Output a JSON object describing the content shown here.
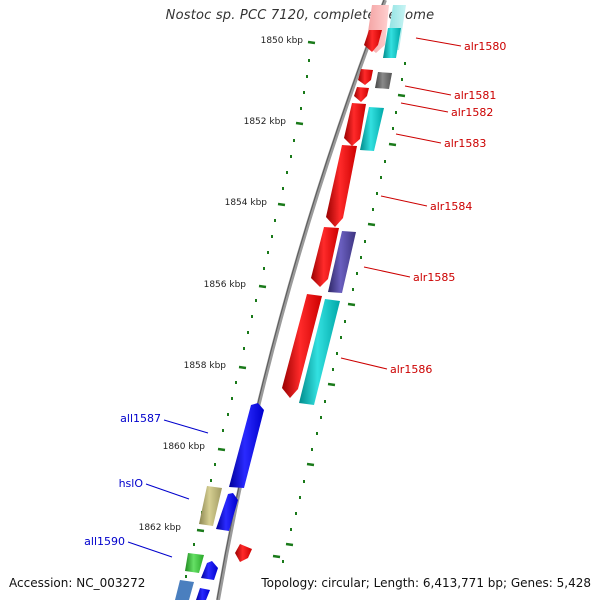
{
  "title": "Nostoc sp. PCC 7120, complete genome",
  "accession": "Accession: NC_003272",
  "summary": "Topology: circular; Length: 6,413,771 bp; Genes: 5,428",
  "ruler_ticks": [
    "1850 kbp",
    "1852 kbp",
    "1854 kbp",
    "1856 kbp",
    "1858 kbp",
    "1860 kbp",
    "1862 kbp"
  ],
  "genes_right": [
    "alr1580",
    "alr1581",
    "alr1582",
    "alr1583",
    "alr1584",
    "alr1585",
    "alr1586"
  ],
  "genes_left": [
    "all1587",
    "hslO",
    "all1590"
  ],
  "colors": {
    "right_label": "#cc0000",
    "left_label": "#0000cc",
    "tick": "#1a7a1a",
    "backbone": "#888888",
    "red": "#ff0000",
    "cyan": "#00cccc",
    "blue": "#0000ff",
    "slate": "#4a3f99",
    "gray": "#666666",
    "olive": "#b8b070",
    "green": "#33cc33"
  }
}
